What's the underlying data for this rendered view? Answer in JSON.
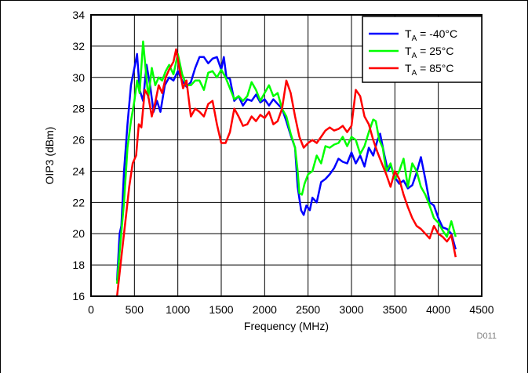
{
  "chart_data": {
    "type": "line",
    "xlabel": "Frequency (MHz)",
    "ylabel": "OIP3 (dBm)",
    "xlim": [
      0,
      4500
    ],
    "ylim": [
      16,
      34
    ],
    "xticks": [
      0,
      500,
      1000,
      1500,
      2000,
      2500,
      3000,
      3500,
      4000,
      4500
    ],
    "yticks": [
      16,
      18,
      20,
      22,
      24,
      26,
      28,
      30,
      32,
      34
    ],
    "grid": true,
    "legend_position": "top-right",
    "code_label": "D011",
    "series": [
      {
        "name": "TA = -40°C",
        "name_main": "T",
        "name_sub": "A",
        "name_rest": " = -40°C",
        "color": "#0000ff",
        "points": [
          [
            300,
            17.0
          ],
          [
            330,
            20.0
          ],
          [
            350,
            20.5
          ],
          [
            380,
            24.0
          ],
          [
            420,
            27.0
          ],
          [
            460,
            29.5
          ],
          [
            500,
            30.6
          ],
          [
            530,
            31.5
          ],
          [
            560,
            29.2
          ],
          [
            600,
            28.5
          ],
          [
            640,
            30.8
          ],
          [
            680,
            29.5
          ],
          [
            720,
            27.8
          ],
          [
            760,
            28.5
          ],
          [
            800,
            27.8
          ],
          [
            850,
            29.5
          ],
          [
            900,
            30.0
          ],
          [
            950,
            29.8
          ],
          [
            1000,
            30.4
          ],
          [
            1050,
            29.8
          ],
          [
            1100,
            29.4
          ],
          [
            1150,
            29.7
          ],
          [
            1200,
            30.6
          ],
          [
            1250,
            31.3
          ],
          [
            1300,
            31.3
          ],
          [
            1350,
            30.9
          ],
          [
            1400,
            31.2
          ],
          [
            1450,
            31.3
          ],
          [
            1500,
            30.5
          ],
          [
            1530,
            31.3
          ],
          [
            1560,
            30.0
          ],
          [
            1600,
            29.9
          ],
          [
            1650,
            28.5
          ],
          [
            1700,
            28.8
          ],
          [
            1750,
            28.2
          ],
          [
            1800,
            28.6
          ],
          [
            1850,
            28.5
          ],
          [
            1900,
            28.9
          ],
          [
            1950,
            28.4
          ],
          [
            2000,
            28.6
          ],
          [
            2050,
            28.2
          ],
          [
            2100,
            28.6
          ],
          [
            2150,
            28.3
          ],
          [
            2200,
            28.0
          ],
          [
            2250,
            27.2
          ],
          [
            2300,
            26.3
          ],
          [
            2350,
            25.5
          ],
          [
            2380,
            23.0
          ],
          [
            2420,
            21.5
          ],
          [
            2450,
            21.2
          ],
          [
            2480,
            21.8
          ],
          [
            2520,
            21.5
          ],
          [
            2550,
            22.3
          ],
          [
            2600,
            22.0
          ],
          [
            2650,
            23.3
          ],
          [
            2700,
            23.5
          ],
          [
            2750,
            23.8
          ],
          [
            2800,
            24.2
          ],
          [
            2850,
            24.8
          ],
          [
            2900,
            24.6
          ],
          [
            2950,
            24.5
          ],
          [
            3000,
            25.2
          ],
          [
            3050,
            24.5
          ],
          [
            3100,
            25.0
          ],
          [
            3150,
            24.3
          ],
          [
            3200,
            25.5
          ],
          [
            3250,
            25.0
          ],
          [
            3300,
            26.0
          ],
          [
            3330,
            26.4
          ],
          [
            3380,
            25.0
          ],
          [
            3420,
            24.0
          ],
          [
            3450,
            24.4
          ],
          [
            3500,
            23.6
          ],
          [
            3550,
            23.2
          ],
          [
            3600,
            23.4
          ],
          [
            3650,
            22.9
          ],
          [
            3700,
            23.1
          ],
          [
            3750,
            23.9
          ],
          [
            3800,
            24.9
          ],
          [
            3850,
            23.5
          ],
          [
            3900,
            22.0
          ],
          [
            3950,
            21.8
          ],
          [
            4000,
            21.0
          ],
          [
            4050,
            20.4
          ],
          [
            4100,
            20.3
          ],
          [
            4150,
            20.0
          ],
          [
            4200,
            19.0
          ]
        ]
      },
      {
        "name": "TA = 25°C",
        "name_main": "T",
        "name_sub": "A",
        "name_rest": " = 25°C",
        "color": "#00ff00",
        "points": [
          [
            300,
            16.8
          ],
          [
            340,
            19.5
          ],
          [
            380,
            22.0
          ],
          [
            420,
            25.5
          ],
          [
            460,
            27.2
          ],
          [
            500,
            28.5
          ],
          [
            530,
            29.8
          ],
          [
            560,
            29.0
          ],
          [
            600,
            32.3
          ],
          [
            630,
            30.5
          ],
          [
            660,
            28.7
          ],
          [
            700,
            30.6
          ],
          [
            740,
            29.5
          ],
          [
            780,
            30.0
          ],
          [
            820,
            29.8
          ],
          [
            860,
            30.4
          ],
          [
            900,
            30.8
          ],
          [
            950,
            30.2
          ],
          [
            1000,
            31.5
          ],
          [
            1050,
            30.2
          ],
          [
            1100,
            29.5
          ],
          [
            1150,
            29.5
          ],
          [
            1200,
            29.8
          ],
          [
            1250,
            29.8
          ],
          [
            1300,
            29.2
          ],
          [
            1350,
            30.3
          ],
          [
            1400,
            30.4
          ],
          [
            1450,
            30.0
          ],
          [
            1500,
            30.5
          ],
          [
            1550,
            30.0
          ],
          [
            1600,
            29.3
          ],
          [
            1650,
            28.6
          ],
          [
            1700,
            28.8
          ],
          [
            1750,
            28.5
          ],
          [
            1800,
            28.8
          ],
          [
            1850,
            29.7
          ],
          [
            1900,
            29.2
          ],
          [
            1950,
            28.5
          ],
          [
            2000,
            29.0
          ],
          [
            2050,
            29.5
          ],
          [
            2100,
            28.8
          ],
          [
            2150,
            29.0
          ],
          [
            2200,
            28.0
          ],
          [
            2250,
            27.5
          ],
          [
            2300,
            26.4
          ],
          [
            2350,
            25.5
          ],
          [
            2380,
            24.0
          ],
          [
            2400,
            22.6
          ],
          [
            2430,
            22.5
          ],
          [
            2460,
            23.2
          ],
          [
            2500,
            23.8
          ],
          [
            2550,
            24.0
          ],
          [
            2600,
            25.0
          ],
          [
            2650,
            24.5
          ],
          [
            2700,
            25.6
          ],
          [
            2750,
            25.5
          ],
          [
            2800,
            25.7
          ],
          [
            2850,
            25.8
          ],
          [
            2900,
            26.2
          ],
          [
            2950,
            25.6
          ],
          [
            3000,
            26.2
          ],
          [
            3050,
            26.0
          ],
          [
            3100,
            25.1
          ],
          [
            3150,
            25.6
          ],
          [
            3200,
            26.5
          ],
          [
            3250,
            27.3
          ],
          [
            3280,
            27.2
          ],
          [
            3320,
            26.0
          ],
          [
            3360,
            25.5
          ],
          [
            3400,
            24.0
          ],
          [
            3450,
            24.5
          ],
          [
            3500,
            23.5
          ],
          [
            3550,
            24.0
          ],
          [
            3600,
            24.8
          ],
          [
            3650,
            23.0
          ],
          [
            3700,
            24.5
          ],
          [
            3750,
            24.0
          ],
          [
            3800,
            23.0
          ],
          [
            3850,
            22.5
          ],
          [
            3900,
            21.8
          ],
          [
            3950,
            21.0
          ],
          [
            4000,
            20.7
          ],
          [
            4050,
            20.2
          ],
          [
            4100,
            19.8
          ],
          [
            4150,
            20.8
          ],
          [
            4200,
            19.8
          ]
        ]
      },
      {
        "name": "TA = 85°C",
        "name_main": "T",
        "name_sub": "A",
        "name_rest": " = 85°C",
        "color": "#ff0000",
        "points": [
          [
            300,
            16.0
          ],
          [
            330,
            17.5
          ],
          [
            360,
            19.0
          ],
          [
            400,
            21.0
          ],
          [
            440,
            23.0
          ],
          [
            480,
            24.5
          ],
          [
            520,
            25.0
          ],
          [
            550,
            27.0
          ],
          [
            580,
            26.8
          ],
          [
            620,
            29.2
          ],
          [
            660,
            28.8
          ],
          [
            700,
            27.5
          ],
          [
            740,
            28.4
          ],
          [
            780,
            29.5
          ],
          [
            820,
            29.0
          ],
          [
            860,
            30.0
          ],
          [
            900,
            30.5
          ],
          [
            950,
            31.0
          ],
          [
            980,
            31.8
          ],
          [
            1020,
            30.5
          ],
          [
            1060,
            29.3
          ],
          [
            1100,
            29.8
          ],
          [
            1150,
            27.5
          ],
          [
            1200,
            28.0
          ],
          [
            1250,
            27.8
          ],
          [
            1300,
            27.5
          ],
          [
            1350,
            28.3
          ],
          [
            1400,
            28.5
          ],
          [
            1450,
            27.0
          ],
          [
            1500,
            25.8
          ],
          [
            1550,
            25.8
          ],
          [
            1600,
            26.5
          ],
          [
            1650,
            28.0
          ],
          [
            1700,
            27.5
          ],
          [
            1750,
            26.9
          ],
          [
            1800,
            27.0
          ],
          [
            1850,
            27.5
          ],
          [
            1900,
            27.2
          ],
          [
            1950,
            27.6
          ],
          [
            2000,
            27.4
          ],
          [
            2050,
            27.8
          ],
          [
            2100,
            27.0
          ],
          [
            2150,
            27.2
          ],
          [
            2200,
            28.0
          ],
          [
            2250,
            29.8
          ],
          [
            2300,
            29.0
          ],
          [
            2350,
            27.5
          ],
          [
            2400,
            26.2
          ],
          [
            2450,
            25.5
          ],
          [
            2500,
            25.8
          ],
          [
            2550,
            26.0
          ],
          [
            2600,
            25.8
          ],
          [
            2650,
            26.2
          ],
          [
            2700,
            26.6
          ],
          [
            2750,
            26.8
          ],
          [
            2800,
            26.6
          ],
          [
            2850,
            26.7
          ],
          [
            2900,
            26.9
          ],
          [
            2950,
            26.5
          ],
          [
            3000,
            26.9
          ],
          [
            3050,
            29.2
          ],
          [
            3100,
            28.8
          ],
          [
            3150,
            27.5
          ],
          [
            3200,
            27.0
          ],
          [
            3250,
            26.0
          ],
          [
            3300,
            25.2
          ],
          [
            3350,
            24.5
          ],
          [
            3400,
            23.8
          ],
          [
            3450,
            23.0
          ],
          [
            3500,
            24.0
          ],
          [
            3550,
            23.5
          ],
          [
            3600,
            22.5
          ],
          [
            3650,
            21.7
          ],
          [
            3700,
            21.0
          ],
          [
            3750,
            20.5
          ],
          [
            3800,
            20.3
          ],
          [
            3850,
            20.0
          ],
          [
            3900,
            19.7
          ],
          [
            3950,
            20.5
          ],
          [
            4000,
            20.0
          ],
          [
            4050,
            19.8
          ],
          [
            4100,
            19.5
          ],
          [
            4150,
            19.9
          ],
          [
            4200,
            18.5
          ]
        ]
      }
    ]
  }
}
